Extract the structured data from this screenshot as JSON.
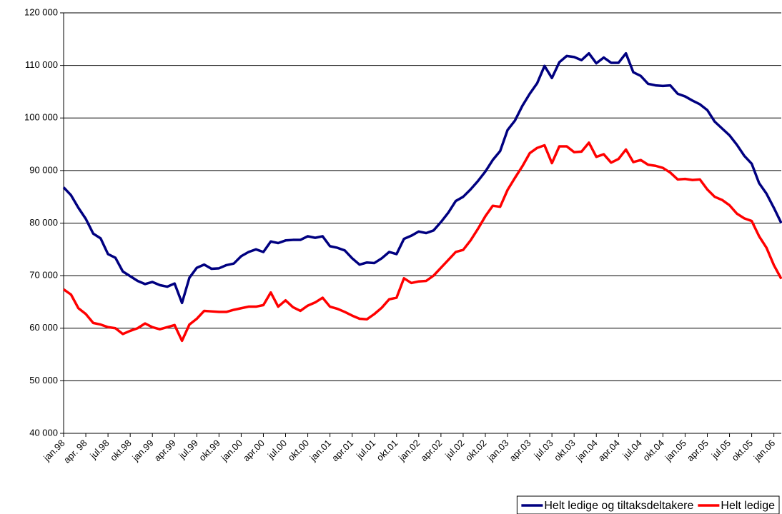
{
  "chart_data": {
    "type": "line",
    "categories": [
      "jan.98",
      null,
      null,
      "apr. 98",
      null,
      null,
      "jul.98",
      null,
      null,
      "okt.98",
      null,
      null,
      "jan.99",
      null,
      null,
      "apr.99",
      null,
      null,
      "jul.99",
      null,
      null,
      "okt.99",
      null,
      null,
      "jan.00",
      null,
      null,
      "apr.00",
      null,
      null,
      "jul.00",
      null,
      null,
      "okt.00",
      null,
      null,
      "jan.01",
      null,
      null,
      "apr.01",
      null,
      null,
      "jul.01",
      null,
      null,
      "okt.01",
      null,
      null,
      "jan.02",
      null,
      null,
      "apr.02",
      null,
      null,
      "jul.02",
      null,
      null,
      "okt.02",
      null,
      null,
      "jan.03",
      null,
      null,
      "apr.03",
      null,
      null,
      "jul.03",
      null,
      null,
      "okt.03",
      null,
      null,
      "jan.04",
      null,
      null,
      "apr.04",
      null,
      null,
      "jul.04",
      null,
      null,
      "okt.04",
      null,
      null,
      "jan.05",
      null,
      null,
      "apr.05",
      null,
      null,
      "jul.05",
      null,
      null,
      "okt.05",
      null,
      null,
      "jan.06",
      null
    ],
    "series": [
      {
        "name": "Helt ledige og tiltaksdeltakere",
        "color": "#000080",
        "values": [
          86800,
          85300,
          82900,
          80800,
          78000,
          77100,
          74100,
          73400,
          70800,
          69900,
          69000,
          68400,
          68800,
          68200,
          67900,
          68500,
          64800,
          69600,
          71500,
          72100,
          71300,
          71400,
          72000,
          72300,
          73700,
          74500,
          75000,
          74500,
          76500,
          76200,
          76700,
          76800,
          76800,
          77500,
          77200,
          77500,
          75600,
          75300,
          74800,
          73300,
          72100,
          72500,
          72400,
          73300,
          74500,
          74100,
          77000,
          77600,
          78400,
          78100,
          78600,
          80200,
          82000,
          84200,
          85000,
          86400,
          88000,
          89800,
          92000,
          93700,
          97700,
          99500,
          102300,
          104600,
          106600,
          109900,
          107600,
          110600,
          111800,
          111600,
          111000,
          112300,
          110400,
          111500,
          110500,
          110500,
          112300,
          108700,
          108000,
          106500,
          106200,
          106100,
          106200,
          104600,
          104100,
          103300,
          102600,
          101500,
          99300,
          98000,
          96700,
          94900,
          92800,
          91300,
          87600,
          85600,
          82900,
          80000
        ]
      },
      {
        "name": "Helt ledige",
        "color": "#ff0000",
        "values": [
          67400,
          66400,
          63800,
          62700,
          61000,
          60700,
          60200,
          60000,
          58900,
          59500,
          60000,
          60900,
          60200,
          59800,
          60200,
          60600,
          57600,
          60700,
          61800,
          63300,
          63200,
          63100,
          63100,
          63500,
          63800,
          64100,
          64100,
          64400,
          66800,
          64100,
          65300,
          64000,
          63300,
          64300,
          64900,
          65800,
          64100,
          63700,
          63100,
          62400,
          61800,
          61700,
          62700,
          63900,
          65500,
          65800,
          69500,
          68600,
          68900,
          69000,
          70000,
          71500,
          73000,
          74500,
          74900,
          76700,
          78900,
          81300,
          83300,
          83100,
          86300,
          88600,
          90800,
          93300,
          94300,
          94800,
          91400,
          94600,
          94600,
          93500,
          93600,
          95300,
          92600,
          93100,
          91500,
          92200,
          94000,
          91600,
          92000,
          91100,
          90900,
          90500,
          89600,
          88300,
          88400,
          88200,
          88300,
          86400,
          85000,
          84400,
          83400,
          81800,
          80900,
          80400,
          77500,
          75300,
          72000,
          69400
        ]
      }
    ],
    "ylim": [
      40000,
      120000
    ],
    "yticks": [
      {
        "value": 40000,
        "label": "40 000"
      },
      {
        "value": 50000,
        "label": "50 000"
      },
      {
        "value": 60000,
        "label": "60 000"
      },
      {
        "value": 70000,
        "label": "70 000"
      },
      {
        "value": 80000,
        "label": "80 000"
      },
      {
        "value": 90000,
        "label": "90 000"
      },
      {
        "value": 100000,
        "label": "100 000"
      },
      {
        "value": 110000,
        "label": "110 000"
      },
      {
        "value": 120000,
        "label": "120 000"
      }
    ],
    "grid": true,
    "legend": "bottom-right"
  }
}
